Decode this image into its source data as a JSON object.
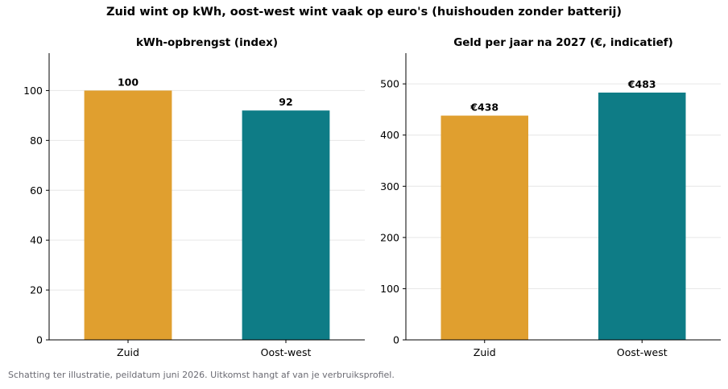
{
  "figure": {
    "title": "Zuid wint op kWh, oost-west wint vaak op euro's (huishouden zonder batterij)",
    "caption": "Schatting ter illustratie, peildatum juni 2026. Uitkomst hangt af van je verbruiksprofiel."
  },
  "chart_data": [
    {
      "type": "bar",
      "title": "kWh-opbrengst (index)",
      "categories": [
        "Zuid",
        "Oost-west"
      ],
      "values": [
        100,
        92
      ],
      "data_labels": [
        "100",
        "92"
      ],
      "colors": [
        "#E09F2F",
        "#0E7C86"
      ],
      "ylim": [
        0,
        115
      ],
      "yticks": [
        0,
        20,
        40,
        60,
        80,
        100
      ],
      "grid": "horizontal"
    },
    {
      "type": "bar",
      "title": "Geld per jaar na 2027 (€, indicatief)",
      "categories": [
        "Zuid",
        "Oost-west"
      ],
      "values": [
        438,
        483
      ],
      "data_labels": [
        "€438",
        "€483"
      ],
      "colors": [
        "#E09F2F",
        "#0E7C86"
      ],
      "ylim": [
        0,
        560
      ],
      "yticks": [
        0,
        100,
        200,
        300,
        400,
        500
      ],
      "grid": "horizontal"
    }
  ]
}
